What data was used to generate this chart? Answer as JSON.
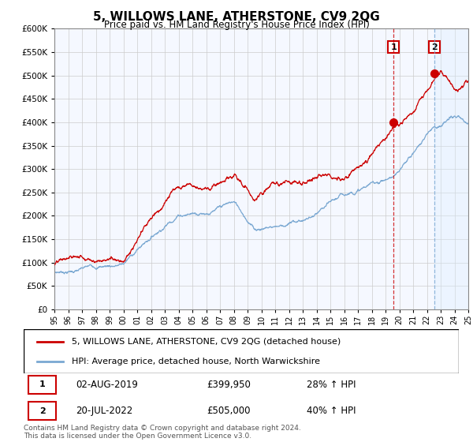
{
  "title": "5, WILLOWS LANE, ATHERSTONE, CV9 2QG",
  "subtitle": "Price paid vs. HM Land Registry's House Price Index (HPI)",
  "ylim": [
    0,
    600000
  ],
  "yticks": [
    0,
    50000,
    100000,
    150000,
    200000,
    250000,
    300000,
    350000,
    400000,
    450000,
    500000,
    550000,
    600000
  ],
  "year_start": 1995,
  "year_end": 2025,
  "sale1_date": 2019.58,
  "sale1_price": 399950,
  "sale1_label": "1",
  "sale1_text": "02-AUG-2019",
  "sale1_amount": "£399,950",
  "sale1_hpi": "28% ↑ HPI",
  "sale2_date": 2022.54,
  "sale2_price": 505000,
  "sale2_label": "2",
  "sale2_text": "20-JUL-2022",
  "sale2_amount": "£505,000",
  "sale2_hpi": "40% ↑ HPI",
  "red_line_color": "#cc0000",
  "blue_line_color": "#7aa8d2",
  "shade_color": "#ddeeff",
  "legend1": "5, WILLOWS LANE, ATHERSTONE, CV9 2QG (detached house)",
  "legend2": "HPI: Average price, detached house, North Warwickshire",
  "footer": "Contains HM Land Registry data © Crown copyright and database right 2024.\nThis data is licensed under the Open Government Licence v3.0.",
  "background_color": "#ffffff",
  "plot_bg_color": "#f5f8ff"
}
